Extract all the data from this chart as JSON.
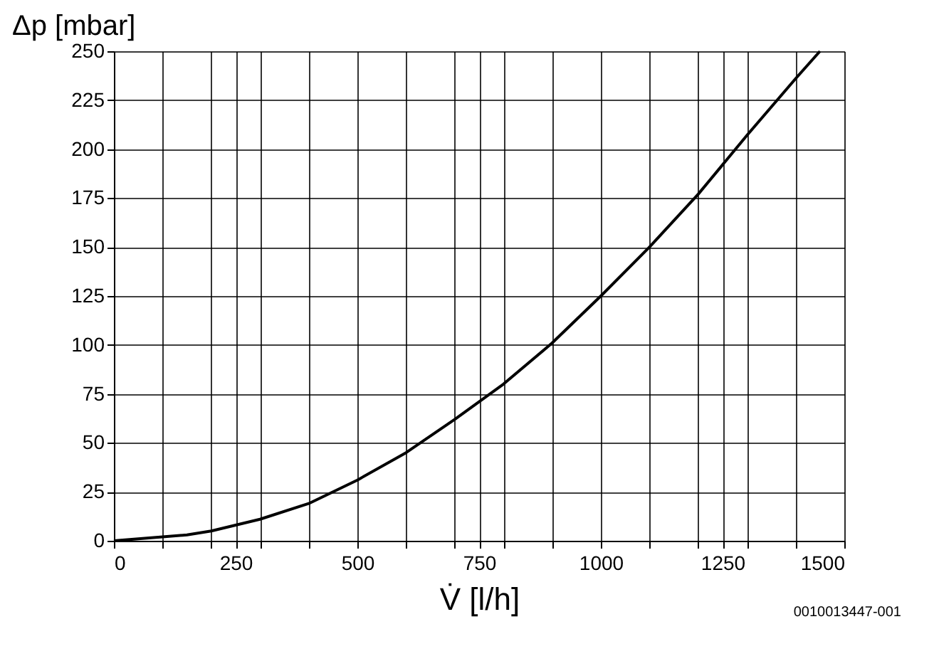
{
  "chart_data": {
    "type": "line",
    "ylabel": "Δp [mbar]",
    "xlabel": "V̇ [l/h]",
    "x": [
      0,
      100,
      150,
      200,
      300,
      400,
      500,
      600,
      700,
      800,
      900,
      1000,
      1100,
      1200,
      1300,
      1400,
      1450
    ],
    "series": [
      {
        "color": "#000000",
        "values": [
          0,
          2,
          3,
          5,
          11,
          19,
          31,
          45,
          62,
          80,
          101,
          125,
          150,
          177,
          207,
          236,
          250
        ]
      }
    ],
    "xlim": [
      0,
      1500
    ],
    "ylim": [
      0,
      250
    ],
    "xticks": [
      0,
      {
        "value": 100,
        "label": null
      },
      {
        "value": 200,
        "label": null
      },
      250,
      {
        "value": 300,
        "label": null
      },
      {
        "value": 400,
        "label": null
      },
      500,
      {
        "value": 600,
        "label": null
      },
      {
        "value": 700,
        "label": null
      },
      750,
      {
        "value": 800,
        "label": null
      },
      {
        "value": 900,
        "label": null
      },
      1000,
      {
        "value": 1100,
        "label": null
      },
      {
        "value": 1200,
        "label": null
      },
      1250,
      {
        "value": 1300,
        "label": null
      },
      {
        "value": 1400,
        "label": null
      },
      1500
    ],
    "yticks": [
      0,
      25,
      50,
      75,
      100,
      125,
      150,
      175,
      200,
      225,
      250
    ],
    "grid": true,
    "marker": "none",
    "line_style": "solid",
    "annotations": [
      "0010013447-001"
    ]
  }
}
